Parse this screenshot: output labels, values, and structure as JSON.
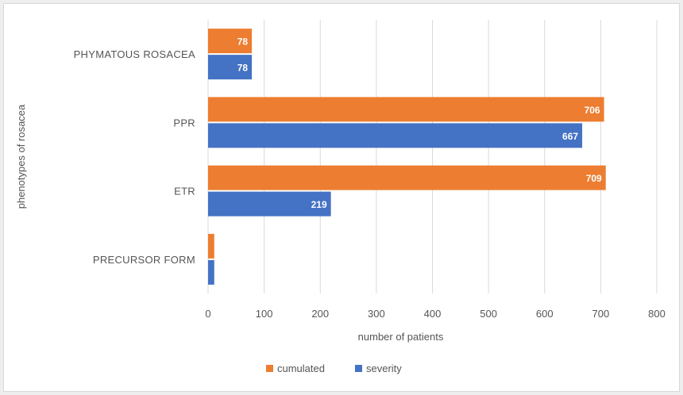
{
  "chart_data": {
    "type": "bar",
    "orientation": "horizontal",
    "categories": [
      "PRECURSOR FORM",
      "ETR",
      "PPR",
      "PHYMATOUS ROSACEA"
    ],
    "series": [
      {
        "name": "cumulated",
        "color": "#ED7D31",
        "values": [
          11,
          709,
          706,
          78
        ]
      },
      {
        "name": "severity",
        "color": "#4472C4",
        "values": [
          11,
          219,
          667,
          78
        ]
      }
    ],
    "xlabel": "number of patients",
    "ylabel": "phenotypes of rosacea",
    "xlim": [
      0,
      800
    ],
    "xticks": [
      0,
      100,
      200,
      300,
      400,
      500,
      600,
      700,
      800
    ],
    "grid": true,
    "legend_position": "bottom"
  }
}
